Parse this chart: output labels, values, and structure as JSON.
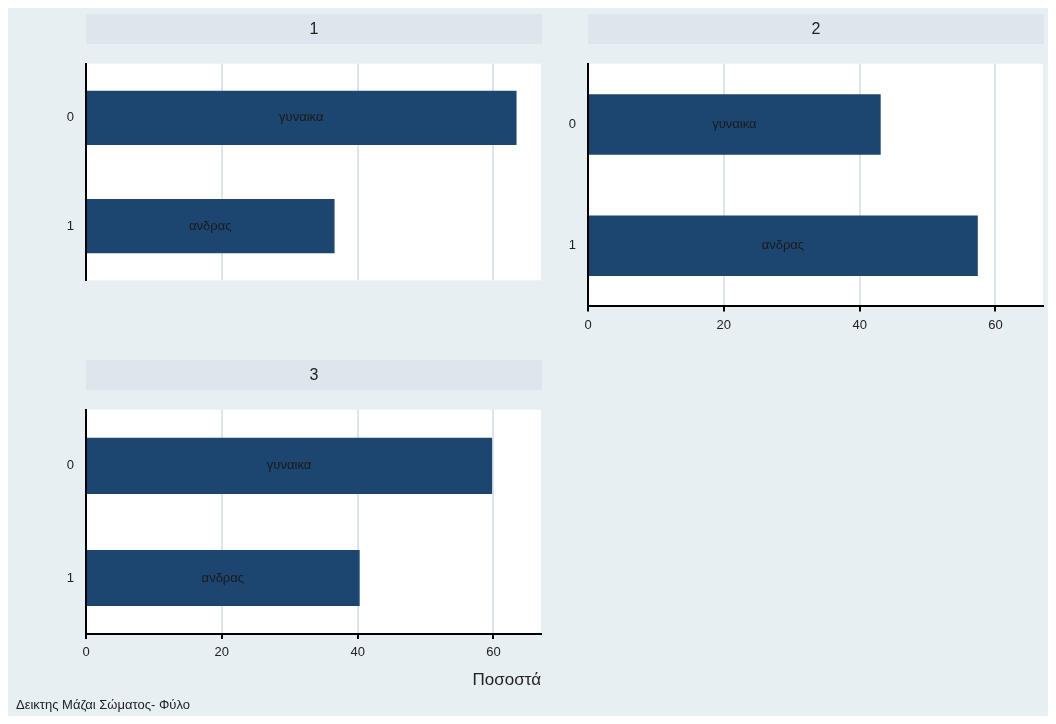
{
  "chart_data": [
    {
      "type": "bar",
      "orientation": "horizontal",
      "title": "1",
      "categories": [
        "0",
        "1"
      ],
      "values": [
        63.4,
        36.6
      ],
      "color": "#1c4670",
      "xlim": [
        0,
        67
      ],
      "xticks": [
        0,
        20,
        40,
        60
      ],
      "grid": "x",
      "tick_labels": "y",
      "value_labels": [
        "γυναικα",
        "ανδρας"
      ]
    },
    {
      "type": "bar",
      "orientation": "horizontal",
      "title": "2",
      "categories": [
        "0",
        "1"
      ],
      "values": [
        43.1,
        57.4
      ],
      "color": "#1c4670",
      "xlim": [
        0,
        67
      ],
      "xticks": [
        0,
        20,
        40,
        60
      ],
      "grid": "x",
      "value_labels": [
        "γυναικα",
        "ανδρας"
      ]
    },
    {
      "type": "bar",
      "orientation": "horizontal",
      "title": "3",
      "categories": [
        "0",
        "1"
      ],
      "values": [
        59.8,
        40.3
      ],
      "color": "#1c4670",
      "xlim": [
        0,
        67
      ],
      "xticks": [
        0,
        20,
        40,
        60
      ],
      "grid": "x",
      "xlabel": "Ποσοστά",
      "value_labels": [
        "γυναικα",
        "ανδρας"
      ],
      "annotations": [
        "Δεικτης Μάζαι Σώματος- Φύλο"
      ]
    }
  ]
}
